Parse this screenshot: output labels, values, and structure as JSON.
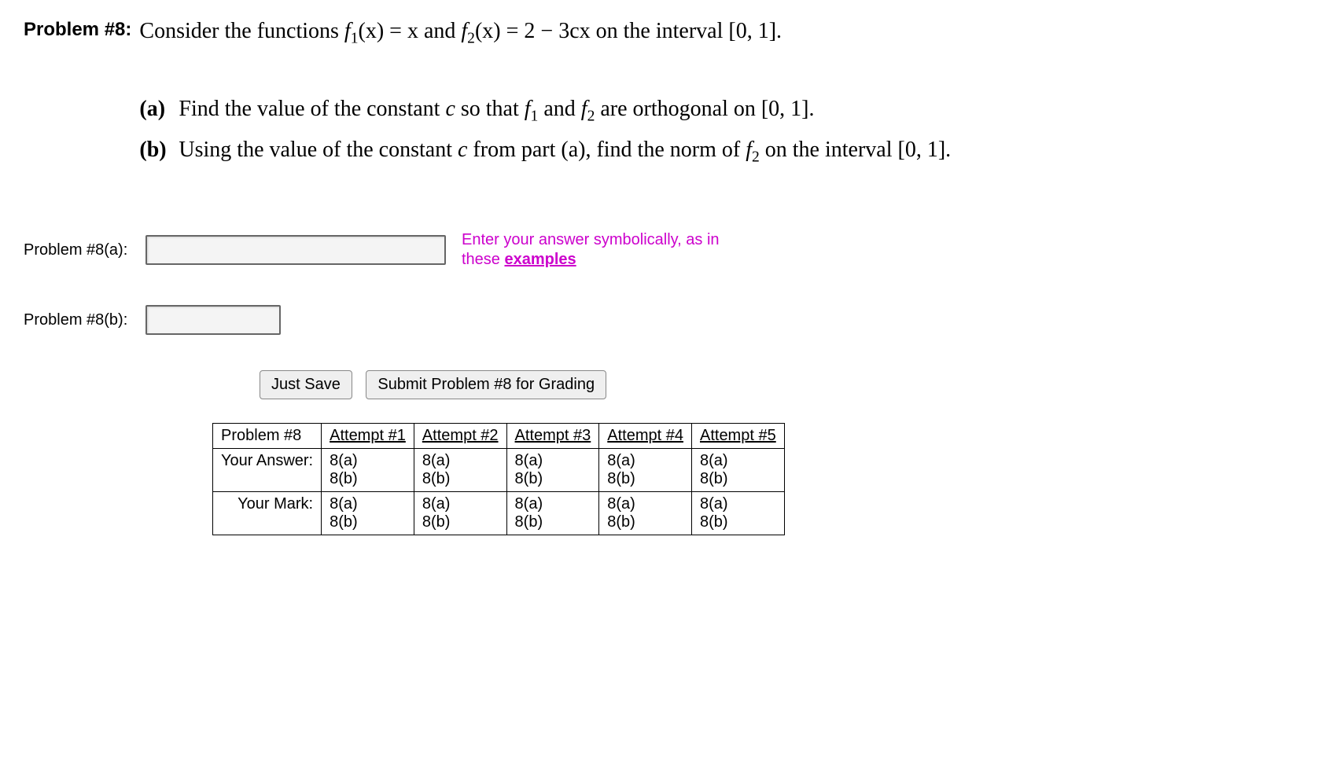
{
  "problem": {
    "label": "Problem #8:",
    "statement_pre": "Consider the functions  ",
    "f1": "f",
    "f1_sub": "1",
    "f1_of": "(x)  =  x",
    "mid": "  and  ",
    "f2": "f",
    "f2_sub": "2",
    "f2_of": "(x)  =  2 − 3cx",
    "statement_post": "  on the interval [0, 1].",
    "parts": [
      {
        "label": "(a)",
        "text_pre": "Find the value of the constant ",
        "c": "c",
        "text_mid": " so that  ",
        "f1": "f",
        "f1_sub": "1",
        "text_and": "  and  ",
        "f2": "f",
        "f2_sub": "2",
        "text_post": " are orthogonal on [0, 1]."
      },
      {
        "label": "(b)",
        "text_pre": "Using the value of the constant ",
        "c": "c",
        "text_mid": " from part (a), find the norm of  ",
        "f2": "f",
        "f2_sub": "2",
        "text_post": "  on the interval [0, 1]."
      }
    ]
  },
  "answers": {
    "a_label": "Problem #8(a):",
    "b_label": "Problem #8(b):",
    "hint_line1": "Enter your answer symbolically, as in",
    "hint_line2_pre": "these ",
    "hint_link": "examples"
  },
  "buttons": {
    "save": "Just Save",
    "submit": "Submit Problem #8 for Grading"
  },
  "table": {
    "header": [
      "Problem #8",
      "Attempt #1",
      "Attempt #2",
      "Attempt #3",
      "Attempt #4",
      "Attempt #5"
    ],
    "rows": [
      {
        "label": "Your Answer:",
        "cells": [
          [
            "8(a)",
            "8(b)"
          ],
          [
            "8(a)",
            "8(b)"
          ],
          [
            "8(a)",
            "8(b)"
          ],
          [
            "8(a)",
            "8(b)"
          ],
          [
            "8(a)",
            "8(b)"
          ]
        ]
      },
      {
        "label": "Your Mark:",
        "cells": [
          [
            "8(a)",
            "8(b)"
          ],
          [
            "8(a)",
            "8(b)"
          ],
          [
            "8(a)",
            "8(b)"
          ],
          [
            "8(a)",
            "8(b)"
          ],
          [
            "8(a)",
            "8(b)"
          ]
        ]
      }
    ]
  }
}
